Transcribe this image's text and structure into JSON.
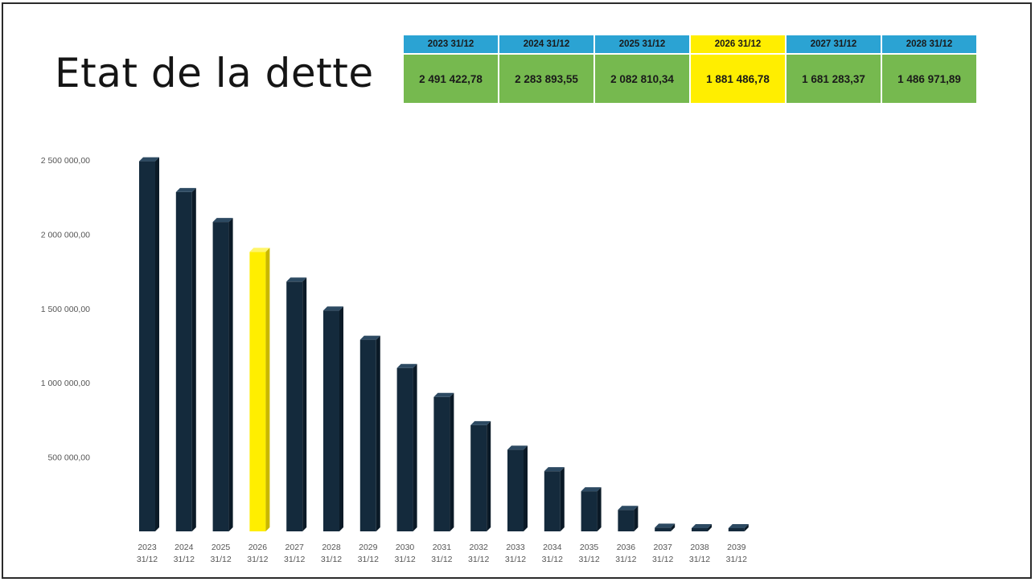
{
  "title": "Etat de la dette",
  "summary": {
    "headers": [
      "2023 31/12",
      "2024 31/12",
      "2025 31/12",
      "2026 31/12",
      "2027 31/12",
      "2028 31/12"
    ],
    "values": [
      "2 491 422,78",
      "2 283 893,55",
      "2 082 810,34",
      "1 881 486,78",
      "1 681 283,37",
      "1 486 971,89"
    ],
    "highlight_index": 3,
    "header_color": "#2ba3d3",
    "value_color": "#76b94f",
    "highlight_color": "#ffee00"
  },
  "chart_data": {
    "type": "bar",
    "categories": [
      [
        "2023",
        "31/12"
      ],
      [
        "2024",
        "31/12"
      ],
      [
        "2025",
        "31/12"
      ],
      [
        "2026",
        "31/12"
      ],
      [
        "2027",
        "31/12"
      ],
      [
        "2028",
        "31/12"
      ],
      [
        "2029",
        "31/12"
      ],
      [
        "2030",
        "31/12"
      ],
      [
        "2031",
        "31/12"
      ],
      [
        "2032",
        "31/12"
      ],
      [
        "2033",
        "31/12"
      ],
      [
        "2034",
        "31/12"
      ],
      [
        "2035",
        "31/12"
      ],
      [
        "2036",
        "31/12"
      ],
      [
        "2037",
        "31/12"
      ],
      [
        "2038",
        "31/12"
      ],
      [
        "2039",
        "31/12"
      ]
    ],
    "values": [
      2491422.78,
      2283893.55,
      2082810.34,
      1881486.78,
      1681283.37,
      1486971.89,
      1290000,
      1100000,
      905000,
      715000,
      550000,
      405000,
      270000,
      145000,
      25000,
      10000,
      8000
    ],
    "highlight_index": 3,
    "ylim": [
      0,
      2500000
    ],
    "yticks": [
      "500 000,00",
      "1 000 000,00",
      "1 500 000,00",
      "2 000 000,00",
      "2 500 000,00"
    ],
    "ytick_values": [
      500000,
      1000000,
      1500000,
      2000000,
      2500000
    ],
    "bar_color": "#142a3c",
    "bar_side_color": "#0b1a27",
    "bar_top_color": "#2d4a62",
    "highlight_color": "#ffee00",
    "highlight_side_color": "#c9b800",
    "highlight_top_color": "#fff56a",
    "xlabel": "",
    "ylabel": "",
    "grid": false
  }
}
